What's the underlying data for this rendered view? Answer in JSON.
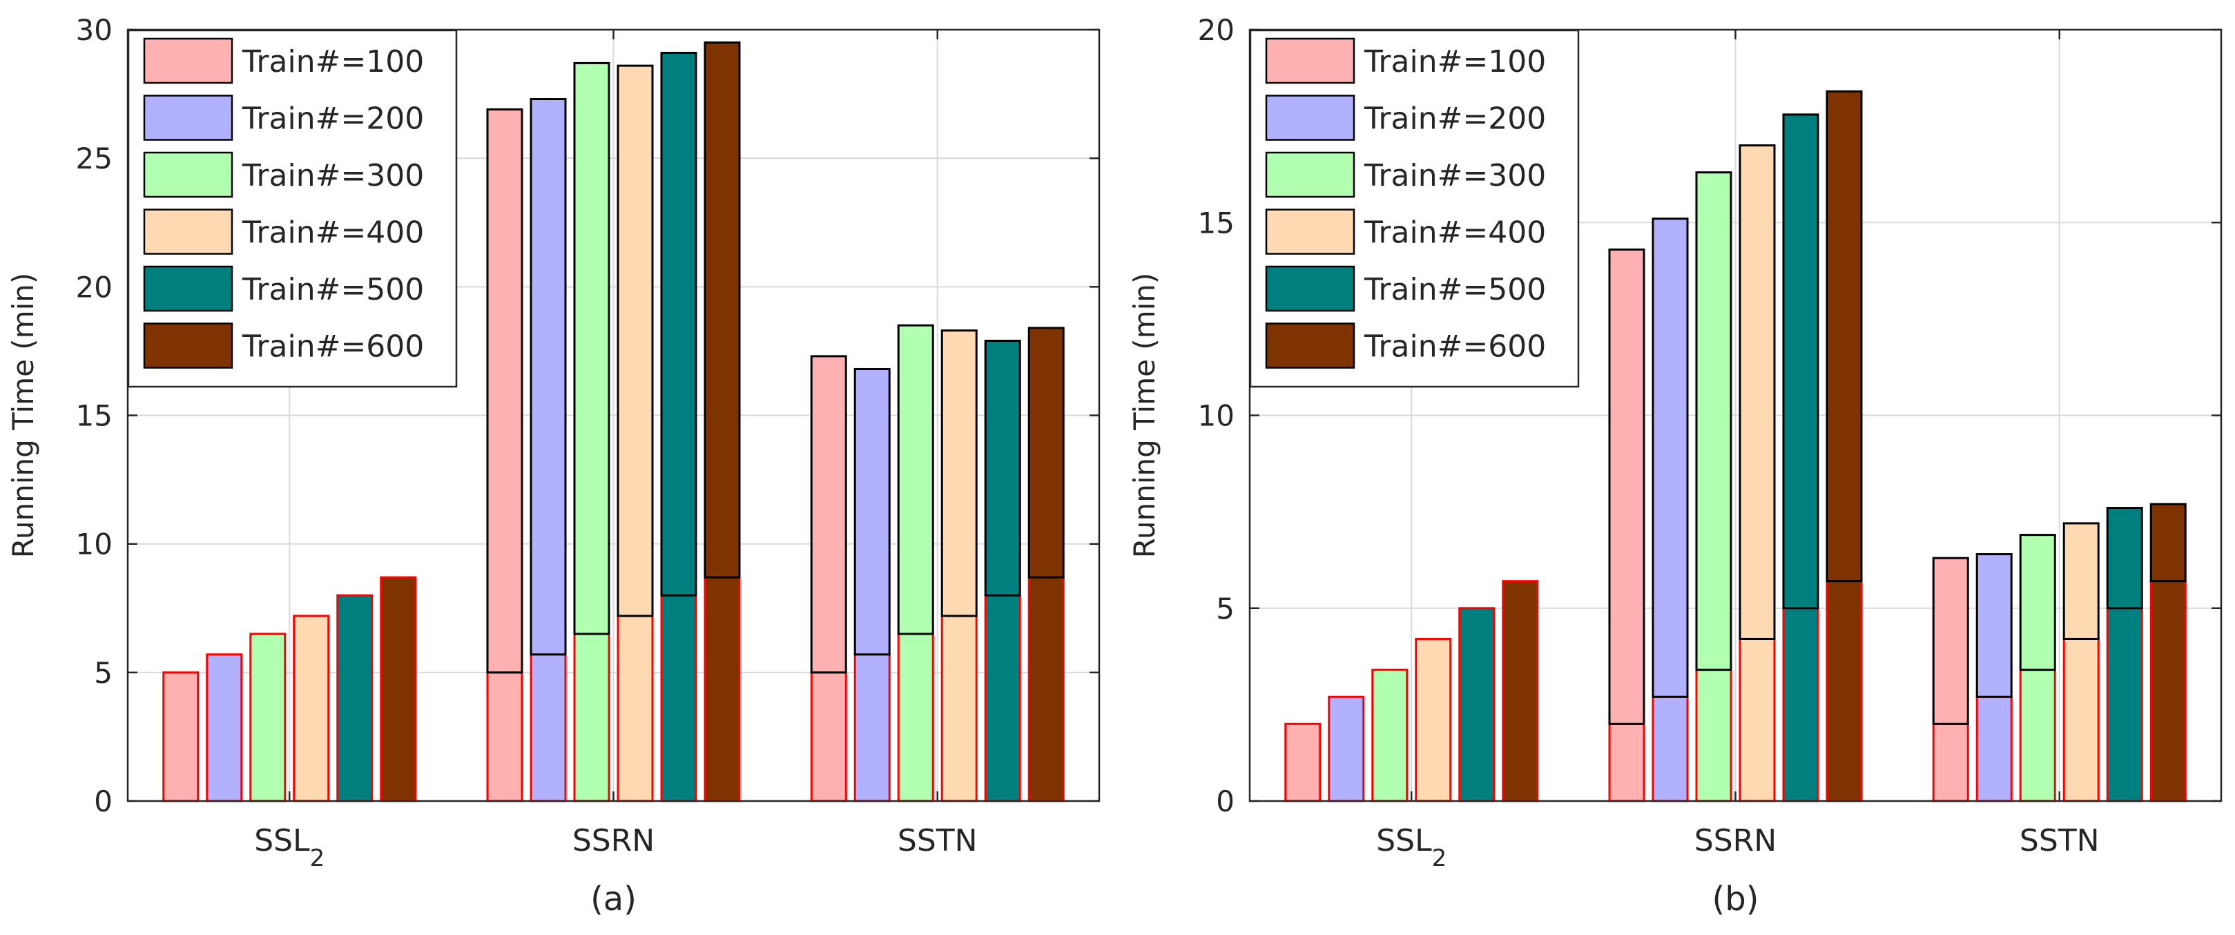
{
  "colors": {
    "series": [
      "#ffb1b1",
      "#b1b1ff",
      "#b1ffb1",
      "#ffd9b1",
      "#007f7f",
      "#7f3300"
    ],
    "outline_base": "#ff0000",
    "outline_top": "#000000",
    "grid": "#d9d9d9",
    "axis": "#262626"
  },
  "chart_data": [
    {
      "type": "bar",
      "panel_label": "(a)",
      "xlabel": "",
      "ylabel": "Running Time (min)",
      "ylim": [
        0,
        30
      ],
      "yticks": [
        "0",
        "5",
        "10",
        "15",
        "20",
        "25",
        "30"
      ],
      "grid": true,
      "legend_position": "top-left",
      "categories": [
        {
          "base": "SSL",
          "sub": "2"
        },
        {
          "base": "SSRN",
          "sub": ""
        },
        {
          "base": "SSTN",
          "sub": ""
        }
      ],
      "stacked_segments": [
        "base_time",
        "added_time"
      ],
      "series": [
        {
          "name": "Train#=100",
          "base": [
            5.0,
            5.0,
            5.0
          ],
          "total": [
            5.0,
            26.9,
            17.3
          ]
        },
        {
          "name": "Train#=200",
          "base": [
            5.7,
            5.7,
            5.7
          ],
          "total": [
            5.7,
            27.3,
            16.8
          ]
        },
        {
          "name": "Train#=300",
          "base": [
            6.5,
            6.5,
            6.5
          ],
          "total": [
            6.5,
            28.7,
            18.5
          ]
        },
        {
          "name": "Train#=400",
          "base": [
            7.2,
            7.2,
            7.2
          ],
          "total": [
            7.2,
            28.6,
            18.3
          ]
        },
        {
          "name": "Train#=500",
          "base": [
            8.0,
            8.0,
            8.0
          ],
          "total": [
            8.0,
            29.1,
            17.9
          ]
        },
        {
          "name": "Train#=600",
          "base": [
            8.7,
            8.7,
            8.7
          ],
          "total": [
            8.7,
            29.5,
            18.4
          ]
        }
      ]
    },
    {
      "type": "bar",
      "panel_label": "(b)",
      "xlabel": "",
      "ylabel": "Running Time (min)",
      "ylim": [
        0,
        20
      ],
      "yticks": [
        "0",
        "5",
        "10",
        "15",
        "20"
      ],
      "grid": true,
      "legend_position": "top-left",
      "categories": [
        {
          "base": "SSL",
          "sub": "2"
        },
        {
          "base": "SSRN",
          "sub": ""
        },
        {
          "base": "SSTN",
          "sub": ""
        }
      ],
      "stacked_segments": [
        "base_time",
        "added_time"
      ],
      "series": [
        {
          "name": "Train#=100",
          "base": [
            2.0,
            2.0,
            2.0
          ],
          "total": [
            2.0,
            14.3,
            6.3
          ]
        },
        {
          "name": "Train#=200",
          "base": [
            2.7,
            2.7,
            2.7
          ],
          "total": [
            2.7,
            15.1,
            6.4
          ]
        },
        {
          "name": "Train#=300",
          "base": [
            3.4,
            3.4,
            3.4
          ],
          "total": [
            3.4,
            16.3,
            6.9
          ]
        },
        {
          "name": "Train#=400",
          "base": [
            4.2,
            4.2,
            4.2
          ],
          "total": [
            4.2,
            17.0,
            7.2
          ]
        },
        {
          "name": "Train#=500",
          "base": [
            5.0,
            5.0,
            5.0
          ],
          "total": [
            5.0,
            17.8,
            7.6
          ]
        },
        {
          "name": "Train#=600",
          "base": [
            5.7,
            5.7,
            5.7
          ],
          "total": [
            5.7,
            18.4,
            7.7
          ]
        }
      ]
    }
  ]
}
